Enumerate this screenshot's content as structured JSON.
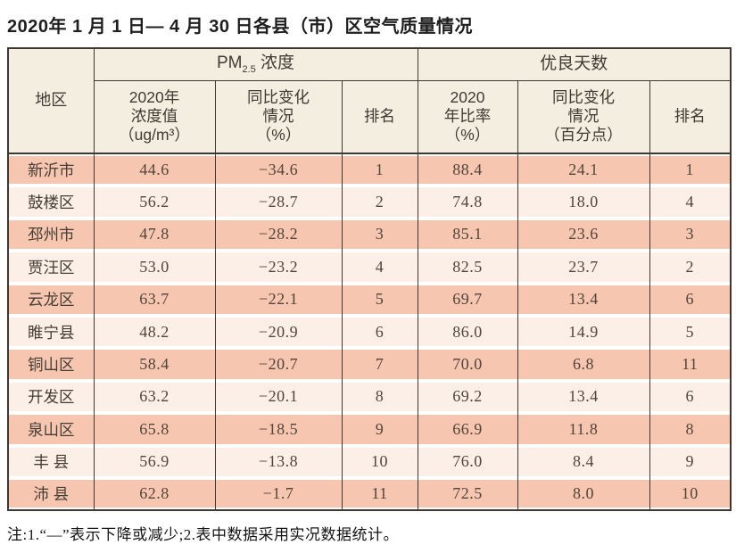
{
  "title": "2020年 1 月 1 日— 4 月 30 日各县（市）区空气质量情况",
  "colors": {
    "row_odd": "#f7c6b0",
    "row_even": "#fcefe7",
    "header_bg": "#f4eee1",
    "border": "#3e3834",
    "text": "#4c4238"
  },
  "table": {
    "region_header": "地区",
    "pm_group": {
      "prefix": "PM",
      "sub": "2.5",
      "suffix": " 浓度"
    },
    "good_days_group": "优良天数",
    "subheaders": {
      "pm_value": "2020年\n浓度值\n（ug/m³）",
      "pm_change": "同比变化\n情况\n（%）",
      "pm_rank": "排名",
      "good_ratio": "2020\n年比率\n（%）",
      "good_change": "同比变化\n情况\n（百分点）",
      "good_rank": "排名"
    },
    "rows": [
      [
        "新沂市",
        "44.6",
        "−34.6",
        "1",
        "88.4",
        "24.1",
        "1"
      ],
      [
        "鼓楼区",
        "56.2",
        "−28.7",
        "2",
        "74.8",
        "18.0",
        "4"
      ],
      [
        "邳州市",
        "47.8",
        "−28.2",
        "3",
        "85.1",
        "23.6",
        "3"
      ],
      [
        "贾汪区",
        "53.0",
        "−23.2",
        "4",
        "82.5",
        "23.7",
        "2"
      ],
      [
        "云龙区",
        "63.7",
        "−22.1",
        "5",
        "69.7",
        "13.4",
        "6"
      ],
      [
        "睢宁县",
        "48.2",
        "−20.9",
        "6",
        "86.0",
        "14.9",
        "5"
      ],
      [
        "铜山区",
        "58.4",
        "−20.7",
        "7",
        "70.0",
        "6.8",
        "11"
      ],
      [
        "开发区",
        "63.2",
        "−20.1",
        "8",
        "69.2",
        "13.4",
        "6"
      ],
      [
        "泉山区",
        "65.8",
        "−18.5",
        "9",
        "66.9",
        "11.8",
        "8"
      ],
      [
        "丰 县",
        "56.9",
        "−13.8",
        "10",
        "76.0",
        "8.4",
        "9"
      ],
      [
        "沛 县",
        "62.8",
        "−1.7",
        "11",
        "72.5",
        "8.0",
        "10"
      ]
    ]
  },
  "footnote": "注:1.“—”表示下降或减少;2.表中数据采用实况数据统计。"
}
